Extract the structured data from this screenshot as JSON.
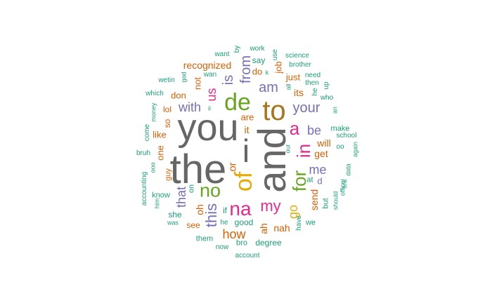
{
  "palette": {
    "teal": "#1b9e77",
    "orange": "#d95f02",
    "purple": "#7570b3",
    "magenta": "#e7298a",
    "green": "#66a61e",
    "gold": "#e6ab02",
    "brown": "#a6761d",
    "gray": "#666666"
  },
  "words": [
    {
      "text": "the",
      "color": "gray"
    },
    {
      "text": "you",
      "color": "gray"
    },
    {
      "text": "and",
      "color": "gray"
    },
    {
      "text": "i",
      "color": "gray"
    },
    {
      "text": "to",
      "color": "brown"
    },
    {
      "text": "of",
      "color": "gold"
    },
    {
      "text": "de",
      "color": "green"
    },
    {
      "text": "na",
      "color": "magenta"
    },
    {
      "text": "for",
      "color": "green"
    },
    {
      "text": "in",
      "color": "magenta"
    },
    {
      "text": "a",
      "color": "magenta"
    },
    {
      "text": "no",
      "color": "green"
    },
    {
      "text": "my",
      "color": "magenta"
    },
    {
      "text": "this",
      "color": "purple"
    },
    {
      "text": "from",
      "color": "purple"
    },
    {
      "text": "is",
      "color": "purple"
    },
    {
      "text": "am",
      "color": "purple"
    },
    {
      "text": "your",
      "color": "purple"
    },
    {
      "text": "be",
      "color": "purple"
    },
    {
      "text": "me",
      "color": "purple"
    },
    {
      "text": "go",
      "color": "gold"
    },
    {
      "text": "with",
      "color": "purple"
    },
    {
      "text": "how",
      "color": "orange"
    },
    {
      "text": "that",
      "color": "purple"
    },
    {
      "text": "us",
      "color": "magenta"
    },
    {
      "text": "or",
      "color": "orange"
    },
    {
      "text": "it",
      "color": "orange"
    },
    {
      "text": "recognized",
      "color": "orange"
    },
    {
      "text": "will",
      "color": "orange"
    },
    {
      "text": "get",
      "color": "orange"
    },
    {
      "text": "send",
      "color": "orange"
    },
    {
      "text": "ah",
      "color": "orange"
    },
    {
      "text": "nah",
      "color": "orange"
    },
    {
      "text": "oh",
      "color": "orange"
    },
    {
      "text": "its",
      "color": "orange"
    },
    {
      "text": "are",
      "color": "orange"
    },
    {
      "text": "just",
      "color": "orange"
    },
    {
      "text": "job",
      "color": "orange"
    },
    {
      "text": "do",
      "color": "orange"
    },
    {
      "text": "not",
      "color": "orange"
    },
    {
      "text": "say",
      "color": "teal"
    },
    {
      "text": "don",
      "color": "orange"
    },
    {
      "text": "lol",
      "color": "orange"
    },
    {
      "text": "so",
      "color": "orange"
    },
    {
      "text": "like",
      "color": "orange"
    },
    {
      "text": "one",
      "color": "orange"
    },
    {
      "text": "guy",
      "color": "orange"
    },
    {
      "text": "see",
      "color": "orange"
    },
    {
      "text": "good",
      "color": "teal"
    },
    {
      "text": "degree",
      "color": "teal"
    },
    {
      "text": "bro",
      "color": "teal"
    },
    {
      "text": "d",
      "color": "purple"
    },
    {
      "text": "at",
      "color": "teal"
    },
    {
      "text": "but",
      "color": "teal"
    },
    {
      "text": "if",
      "color": "teal"
    },
    {
      "text": "on",
      "color": "teal"
    },
    {
      "text": "she",
      "color": "teal"
    },
    {
      "text": "want",
      "color": "teal"
    },
    {
      "text": "by",
      "color": "teal"
    },
    {
      "text": "work",
      "color": "teal"
    },
    {
      "text": "use",
      "color": "teal"
    },
    {
      "text": "science",
      "color": "teal"
    },
    {
      "text": "brother",
      "color": "teal"
    },
    {
      "text": "need",
      "color": "teal"
    },
    {
      "text": "then",
      "color": "teal"
    },
    {
      "text": "up",
      "color": "teal"
    },
    {
      "text": "wetin",
      "color": "teal"
    },
    {
      "text": "god",
      "color": "teal"
    },
    {
      "text": "wan",
      "color": "teal"
    },
    {
      "text": "k",
      "color": "teal"
    },
    {
      "text": "all",
      "color": "teal"
    },
    {
      "text": "he",
      "color": "teal"
    },
    {
      "text": "who",
      "color": "teal"
    },
    {
      "text": "which",
      "color": "teal"
    },
    {
      "text": "money",
      "color": "teal"
    },
    {
      "text": "ii",
      "color": "teal"
    },
    {
      "text": "an",
      "color": "teal"
    },
    {
      "text": "come",
      "color": "teal"
    },
    {
      "text": "make",
      "color": "teal"
    },
    {
      "text": "school",
      "color": "teal"
    },
    {
      "text": "our",
      "color": "teal"
    },
    {
      "text": "oo",
      "color": "teal"
    },
    {
      "text": "again",
      "color": "teal"
    },
    {
      "text": "bruh",
      "color": "teal"
    },
    {
      "text": "ooo",
      "color": "teal"
    },
    {
      "text": "data",
      "color": "teal"
    },
    {
      "text": "link",
      "color": "teal"
    },
    {
      "text": "accounting",
      "color": "teal"
    },
    {
      "text": "should",
      "color": "teal"
    },
    {
      "text": "officer",
      "color": "teal"
    },
    {
      "text": "know",
      "color": "teal"
    },
    {
      "text": "him",
      "color": "teal"
    },
    {
      "text": "was",
      "color": "teal"
    },
    {
      "text": "he",
      "color": "teal"
    },
    {
      "text": "have",
      "color": "teal"
    },
    {
      "text": "we",
      "color": "teal"
    },
    {
      "text": "them",
      "color": "teal"
    },
    {
      "text": "now",
      "color": "teal"
    },
    {
      "text": "account",
      "color": "teal"
    }
  ]
}
